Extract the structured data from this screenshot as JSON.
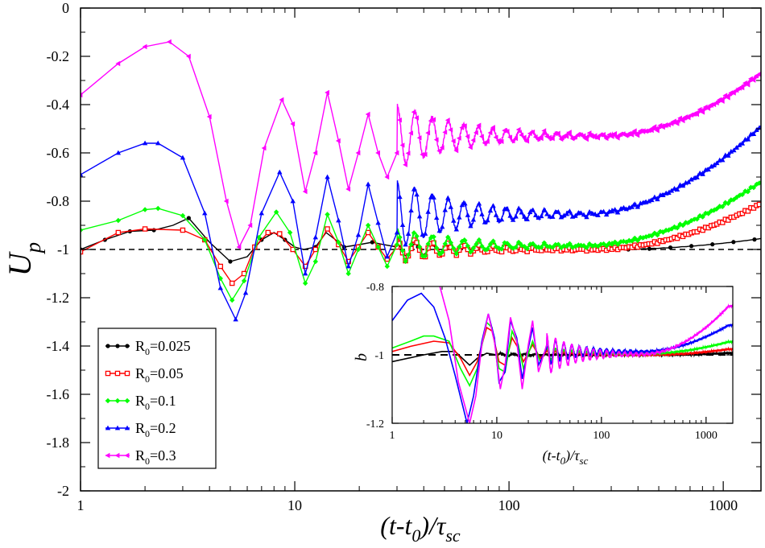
{
  "chart_data": {
    "type": "line",
    "xscale": "log",
    "xlim": [
      1,
      1500
    ],
    "ylim": [
      -2,
      0
    ],
    "xticks": [
      {
        "value": 1,
        "label": "1"
      },
      {
        "value": 10,
        "label": "10"
      },
      {
        "value": 100,
        "label": "100"
      },
      {
        "value": 1000,
        "label": "1000"
      }
    ],
    "yticks": [
      {
        "value": 0,
        "label": "0"
      },
      {
        "value": -0.2,
        "label": "-0.2"
      },
      {
        "value": -0.4,
        "label": "-0.4"
      },
      {
        "value": -0.6,
        "label": "-0.6"
      },
      {
        "value": -0.8,
        "label": "-0.8"
      },
      {
        "value": -1,
        "label": "-1"
      },
      {
        "value": -1.2,
        "label": "-1.2"
      },
      {
        "value": -1.4,
        "label": "-1.4"
      },
      {
        "value": -1.6,
        "label": "-1.6"
      },
      {
        "value": -1.8,
        "label": "-1.8"
      },
      {
        "value": -2,
        "label": "-2"
      }
    ],
    "xlabel": {
      "main": "(t-t",
      "sub1": "0",
      "mid": ")/τ",
      "sub2": "sc"
    },
    "ylabel": {
      "main": "U",
      "sub": "p"
    },
    "reference_line": -1,
    "legend_position": "bottom-left",
    "series": [
      {
        "name": "R0=0.025",
        "label_main": "R",
        "label_sub": "0",
        "label_rest": "=0.025",
        "color": "#000000",
        "marker": "circle",
        "baseline": -1.0,
        "end_value": -0.955,
        "rise_start": 300,
        "points": [
          [
            1.0,
            -1.0
          ],
          [
            1.3,
            -0.96
          ],
          [
            1.7,
            -0.925
          ],
          [
            2.2,
            -0.92
          ],
          [
            2.7,
            -0.9
          ],
          [
            3.2,
            -0.87
          ],
          [
            4.0,
            -0.97
          ],
          [
            5.0,
            -1.05
          ],
          [
            6.0,
            -1.03
          ],
          [
            7.0,
            -0.96
          ],
          [
            8.0,
            -0.93
          ],
          [
            9.0,
            -0.96
          ],
          [
            10.0,
            -0.99
          ],
          [
            11.0,
            -1.0
          ],
          [
            12.5,
            -0.99
          ],
          [
            14.0,
            -0.93
          ],
          [
            15.5,
            -0.96
          ],
          [
            17.0,
            -0.99
          ],
          [
            20.0,
            -0.98
          ],
          [
            23.0,
            -0.97
          ],
          [
            26.0,
            -0.98
          ],
          [
            30.0,
            -0.99
          ]
        ],
        "osc_amp": 0.03,
        "ripple": 0.0
      },
      {
        "name": "R0=0.05",
        "label_main": "R",
        "label_sub": "0",
        "label_rest": "=0.05",
        "color": "#ff0000",
        "marker": "square",
        "baseline": -1.0,
        "end_value": -0.81,
        "rise_start": 250,
        "points": [
          [
            1.0,
            -1.01
          ],
          [
            1.5,
            -0.93
          ],
          [
            2.0,
            -0.915
          ],
          [
            3.0,
            -0.92
          ],
          [
            3.8,
            -0.96
          ],
          [
            4.5,
            -1.07
          ],
          [
            5.1,
            -1.14
          ],
          [
            5.8,
            -1.1
          ],
          [
            6.5,
            -0.99
          ],
          [
            7.5,
            -0.93
          ],
          [
            8.5,
            -0.935
          ],
          [
            9.8,
            -1.0
          ],
          [
            11.2,
            -1.07
          ],
          [
            12.5,
            -1.0
          ],
          [
            14.2,
            -0.915
          ],
          [
            16.0,
            -0.98
          ],
          [
            17.8,
            -1.05
          ],
          [
            19.8,
            -0.99
          ],
          [
            22.0,
            -0.93
          ],
          [
            24.5,
            -0.99
          ],
          [
            27.0,
            -1.04
          ],
          [
            30.0,
            -0.99
          ]
        ],
        "osc_amp": 0.05,
        "ripple": 0.004
      },
      {
        "name": "R0=0.1",
        "label_main": "R",
        "label_sub": "0",
        "label_rest": "=0.1",
        "color": "#00ff00",
        "marker": "diamond",
        "baseline": -0.985,
        "end_value": -0.72,
        "rise_start": 220,
        "points": [
          [
            1.0,
            -0.92
          ],
          [
            1.5,
            -0.88
          ],
          [
            2.0,
            -0.835
          ],
          [
            2.3,
            -0.83
          ],
          [
            3.0,
            -0.86
          ],
          [
            3.8,
            -0.96
          ],
          [
            4.5,
            -1.12
          ],
          [
            5.1,
            -1.21
          ],
          [
            5.8,
            -1.13
          ],
          [
            6.8,
            -0.95
          ],
          [
            8.2,
            -0.845
          ],
          [
            9.5,
            -0.93
          ],
          [
            11.2,
            -1.14
          ],
          [
            12.5,
            -1.05
          ],
          [
            14.2,
            -0.855
          ],
          [
            16.0,
            -0.97
          ],
          [
            17.8,
            -1.1
          ],
          [
            19.8,
            -1.0
          ],
          [
            22.0,
            -0.9
          ],
          [
            24.5,
            -0.99
          ],
          [
            27.0,
            -1.07
          ],
          [
            30.0,
            -0.98
          ]
        ],
        "osc_amp": 0.07,
        "ripple": 0.005
      },
      {
        "name": "R0=0.2",
        "label_main": "R",
        "label_sub": "0",
        "label_rest": "=0.2",
        "color": "#0000ff",
        "marker": "triangle",
        "baseline": -0.855,
        "end_value": -0.49,
        "rise_start": 220,
        "points": [
          [
            1.0,
            -0.69
          ],
          [
            1.5,
            -0.6
          ],
          [
            2.0,
            -0.56
          ],
          [
            2.3,
            -0.56
          ],
          [
            3.0,
            -0.62
          ],
          [
            3.8,
            -0.85
          ],
          [
            4.5,
            -1.16
          ],
          [
            5.3,
            -1.29
          ],
          [
            5.9,
            -1.18
          ],
          [
            7.0,
            -0.85
          ],
          [
            8.5,
            -0.68
          ],
          [
            9.8,
            -0.8
          ],
          [
            11.2,
            -1.1
          ],
          [
            12.5,
            -0.95
          ],
          [
            14.2,
            -0.7
          ],
          [
            16.0,
            -0.88
          ],
          [
            17.8,
            -1.07
          ],
          [
            19.8,
            -0.94
          ],
          [
            22.0,
            -0.73
          ],
          [
            24.5,
            -0.89
          ],
          [
            27.0,
            -1.03
          ],
          [
            30.0,
            -0.93
          ]
        ],
        "osc_amp": 0.14,
        "ripple": 0.005
      },
      {
        "name": "R0=0.3",
        "label_main": "R",
        "label_sub": "0",
        "label_rest": "=0.3",
        "color": "#ff00ff",
        "marker": "tri-left",
        "baseline": -0.53,
        "end_value": -0.27,
        "rise_start": 280,
        "points": [
          [
            1.0,
            -0.36
          ],
          [
            1.5,
            -0.23
          ],
          [
            2.0,
            -0.16
          ],
          [
            2.6,
            -0.14
          ],
          [
            3.2,
            -0.2
          ],
          [
            4.0,
            -0.45
          ],
          [
            4.8,
            -0.8
          ],
          [
            5.5,
            -0.99
          ],
          [
            6.2,
            -0.9
          ],
          [
            7.2,
            -0.58
          ],
          [
            8.7,
            -0.38
          ],
          [
            9.8,
            -0.48
          ],
          [
            11.2,
            -0.76
          ],
          [
            12.5,
            -0.6
          ],
          [
            14.2,
            -0.35
          ],
          [
            16.0,
            -0.55
          ],
          [
            17.8,
            -0.75
          ],
          [
            19.8,
            -0.6
          ],
          [
            22.0,
            -0.44
          ],
          [
            24.5,
            -0.6
          ],
          [
            27.0,
            -0.7
          ],
          [
            30.0,
            -0.6
          ]
        ],
        "osc_amp": 0.13,
        "ripple": 0.008
      }
    ],
    "inset": {
      "ylabel": "b",
      "xlim": [
        1,
        1800
      ],
      "ylim": [
        -1.2,
        -0.8
      ],
      "xticks": [
        {
          "value": 1,
          "label": "1"
        },
        {
          "value": 10,
          "label": "10"
        },
        {
          "value": 100,
          "label": "100"
        },
        {
          "value": 1000,
          "label": "1000"
        }
      ],
      "yticks": [
        {
          "value": -0.8,
          "label": "-0.8"
        },
        {
          "value": -1,
          "label": "-1"
        },
        {
          "value": -1.2,
          "label": "-1.2"
        }
      ],
      "xlabel": {
        "main": "(t-t",
        "sub1": "0",
        "mid": ")/τ",
        "sub2": "sc"
      },
      "reference_line": -1,
      "series": [
        {
          "name": "R0=0.025",
          "color": "#000000",
          "end_value": -0.995,
          "rise_start": 400,
          "baseline": -1.0,
          "osc_amp": 0.005,
          "points": [
            [
              1.0,
              -1.02
            ],
            [
              2.0,
              -1.0
            ],
            [
              3.0,
              -0.99
            ],
            [
              4.0,
              -0.99
            ],
            [
              5.5,
              -1.03
            ],
            [
              6.5,
              -1.01
            ],
            [
              8.0,
              -0.995
            ],
            [
              10.0,
              -1.0
            ]
          ]
        },
        {
          "name": "R0=0.05",
          "color": "#ff0000",
          "end_value": -0.985,
          "rise_start": 300,
          "baseline": -1.0,
          "osc_amp": 0.015,
          "points": [
            [
              1.0,
              -0.99
            ],
            [
              1.5,
              -0.975
            ],
            [
              2.5,
              -0.96
            ],
            [
              3.5,
              -0.965
            ],
            [
              4.5,
              -1.01
            ],
            [
              5.5,
              -1.06
            ],
            [
              6.5,
              -1.02
            ],
            [
              8.0,
              -0.92
            ],
            [
              9.0,
              -0.93
            ],
            [
              10.5,
              -1.02
            ],
            [
              12.0,
              -1.03
            ],
            [
              14.0,
              -0.95
            ],
            [
              16.0,
              -0.98
            ],
            [
              18.0,
              -1.02
            ],
            [
              22.0,
              -0.97
            ],
            [
              26.0,
              -1.01
            ],
            [
              30.0,
              -0.99
            ]
          ]
        },
        {
          "name": "R0=0.1",
          "color": "#00ff00",
          "end_value": -0.965,
          "rise_start": 250,
          "baseline": -0.997,
          "osc_amp": 0.02,
          "points": [
            [
              1.0,
              -0.98
            ],
            [
              1.5,
              -0.96
            ],
            [
              2.0,
              -0.945
            ],
            [
              2.5,
              -0.945
            ],
            [
              3.5,
              -0.96
            ],
            [
              4.5,
              -1.04
            ],
            [
              5.5,
              -1.09
            ],
            [
              6.5,
              -1.04
            ],
            [
              8.0,
              -0.905
            ],
            [
              9.0,
              -0.92
            ],
            [
              10.5,
              -1.04
            ],
            [
              12.0,
              -1.05
            ],
            [
              14.0,
              -0.93
            ],
            [
              16.0,
              -0.97
            ],
            [
              18.0,
              -1.04
            ],
            [
              22.0,
              -0.96
            ],
            [
              26.0,
              -1.02
            ],
            [
              30.0,
              -0.98
            ]
          ]
        },
        {
          "name": "R0=0.2",
          "color": "#0000ff",
          "end_value": -0.92,
          "rise_start": 250,
          "baseline": -0.99,
          "osc_amp": 0.04,
          "points": [
            [
              1.0,
              -0.9
            ],
            [
              1.4,
              -0.84
            ],
            [
              1.9,
              -0.82
            ],
            [
              2.5,
              -0.86
            ],
            [
              3.2,
              -0.95
            ],
            [
              4.0,
              -1.06
            ],
            [
              5.2,
              -1.2
            ],
            [
              6.0,
              -1.12
            ],
            [
              7.2,
              -0.96
            ],
            [
              8.3,
              -0.88
            ],
            [
              9.5,
              -0.95
            ],
            [
              10.5,
              -1.08
            ],
            [
              12.0,
              -1.05
            ],
            [
              13.5,
              -0.9
            ],
            [
              15.5,
              -0.95
            ],
            [
              17.5,
              -1.07
            ],
            [
              20.0,
              -0.98
            ],
            [
              22.0,
              -0.92
            ],
            [
              25.0,
              -1.03
            ],
            [
              30.0,
              -0.98
            ]
          ]
        },
        {
          "name": "R0=0.3",
          "color": "#ff00ff",
          "end_value": -0.87,
          "rise_start": 250,
          "baseline": -0.998,
          "osc_amp": 0.06,
          "points": [
            [
              2.8,
              -0.79
            ],
            [
              3.5,
              -0.9
            ],
            [
              4.3,
              -1.08
            ],
            [
              5.5,
              -1.2
            ],
            [
              6.3,
              -1.12
            ],
            [
              7.2,
              -0.97
            ],
            [
              8.3,
              -0.88
            ],
            [
              9.5,
              -0.96
            ],
            [
              10.8,
              -1.1
            ],
            [
              12.0,
              -1.03
            ],
            [
              13.5,
              -0.89
            ],
            [
              15.5,
              -0.96
            ],
            [
              17.5,
              -1.1
            ],
            [
              20.0,
              -0.97
            ],
            [
              22.0,
              -0.9
            ],
            [
              25.0,
              -1.05
            ],
            [
              30.0,
              -0.97
            ]
          ]
        }
      ]
    }
  }
}
